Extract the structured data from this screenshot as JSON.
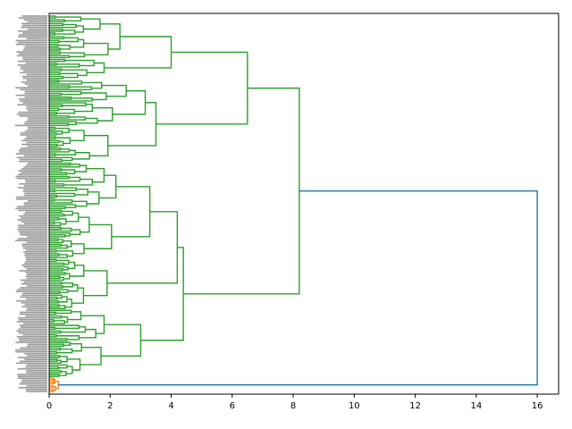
{
  "chart_data": {
    "type": "dendrogram",
    "orientation": "right",
    "title": "",
    "xlabel": "",
    "ylabel": "",
    "xlim": [
      0,
      16.7
    ],
    "xticks": [
      0,
      2,
      4,
      6,
      8,
      10,
      12,
      14,
      16
    ],
    "xtick_labels": [
      "0",
      "2",
      "4",
      "6",
      "8",
      "10",
      "12",
      "14",
      "16"
    ],
    "grid": false,
    "leaf_count_estimate": 200,
    "colors": {
      "cluster_main": "#2ca02c",
      "cluster_small": "#ff7f0e",
      "above_threshold": "#1f77b4"
    },
    "clusters": [
      {
        "color_key": "cluster_small",
        "leaf_count": 8,
        "max_merge_height": 0.3
      },
      {
        "color_key": "cluster_main",
        "leaf_count": 192,
        "max_merge_height": 8.2
      }
    ],
    "top_links": [
      {
        "height": 16.0,
        "color_key": "above_threshold",
        "joins": [
          "cluster_main",
          "cluster_small"
        ]
      },
      {
        "height": 8.2,
        "color_key": "cluster_main",
        "joins": [
          "subtree_A",
          "subtree_B"
        ]
      },
      {
        "height": 6.5,
        "color_key": "cluster_main",
        "joins": [
          "subtree_A1",
          "subtree_A2"
        ]
      },
      {
        "height": 4.4,
        "color_key": "cluster_main",
        "joins": [
          "subtree_B1",
          "subtree_B2"
        ]
      },
      {
        "height": 4.0,
        "color_key": "cluster_main",
        "joins": [
          "subtree_A1a",
          "subtree_A1b"
        ]
      },
      {
        "height": 3.5,
        "color_key": "cluster_main",
        "joins": [
          "subtree_A2a",
          "subtree_A2b"
        ]
      },
      {
        "height": 4.2,
        "color_key": "cluster_main",
        "joins": [
          "subtree_B1a",
          "subtree_B1b"
        ]
      },
      {
        "height": 3.0,
        "color_key": "cluster_main",
        "joins": [
          "subtree_B2a",
          "subtree_B2b"
        ]
      }
    ]
  }
}
